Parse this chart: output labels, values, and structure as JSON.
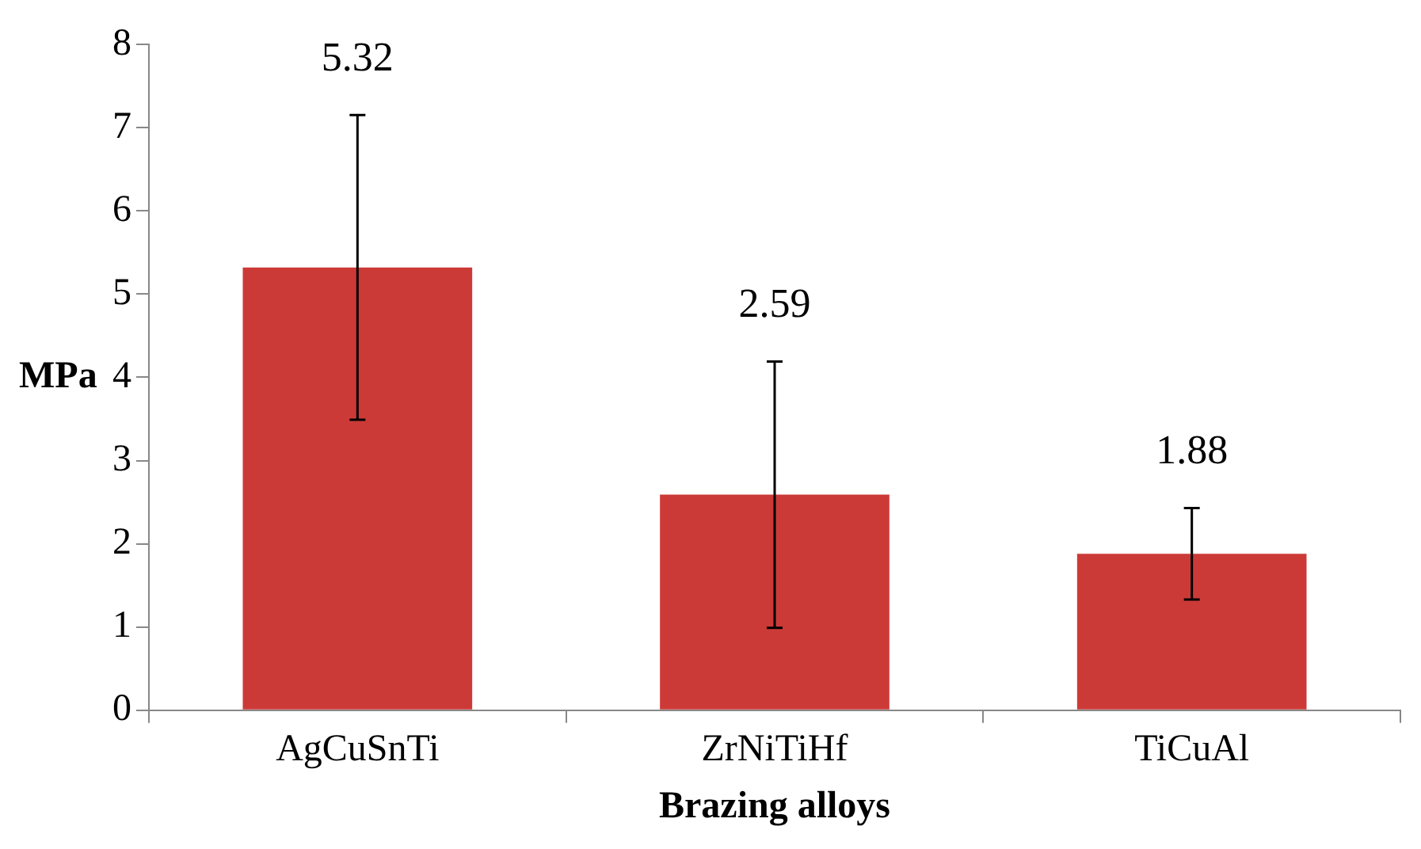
{
  "chart_data": {
    "type": "bar",
    "xlabel": "Brazing alloys",
    "ylabel": "MPa",
    "categories": [
      "AgCuSnTi",
      "ZrNiTiHf",
      "TiCuAl"
    ],
    "values": [
      5.32,
      2.59,
      1.88
    ],
    "errors": [
      1.83,
      1.6,
      0.55
    ],
    "color": "#cc3a37",
    "ylim": [
      0,
      8
    ],
    "yticks": [
      0,
      1,
      2,
      3,
      4,
      5,
      6,
      7,
      8
    ],
    "annotations": [
      {
        "text": "5.32",
        "x": "AgCuSnTi",
        "y": 7.15
      },
      {
        "text": "2.59",
        "x": "ZrNiTiHf",
        "y": 4.19
      },
      {
        "text": "1.88",
        "x": "TiCuAl",
        "y": 2.43
      }
    ],
    "grid": false,
    "legend": false
  }
}
